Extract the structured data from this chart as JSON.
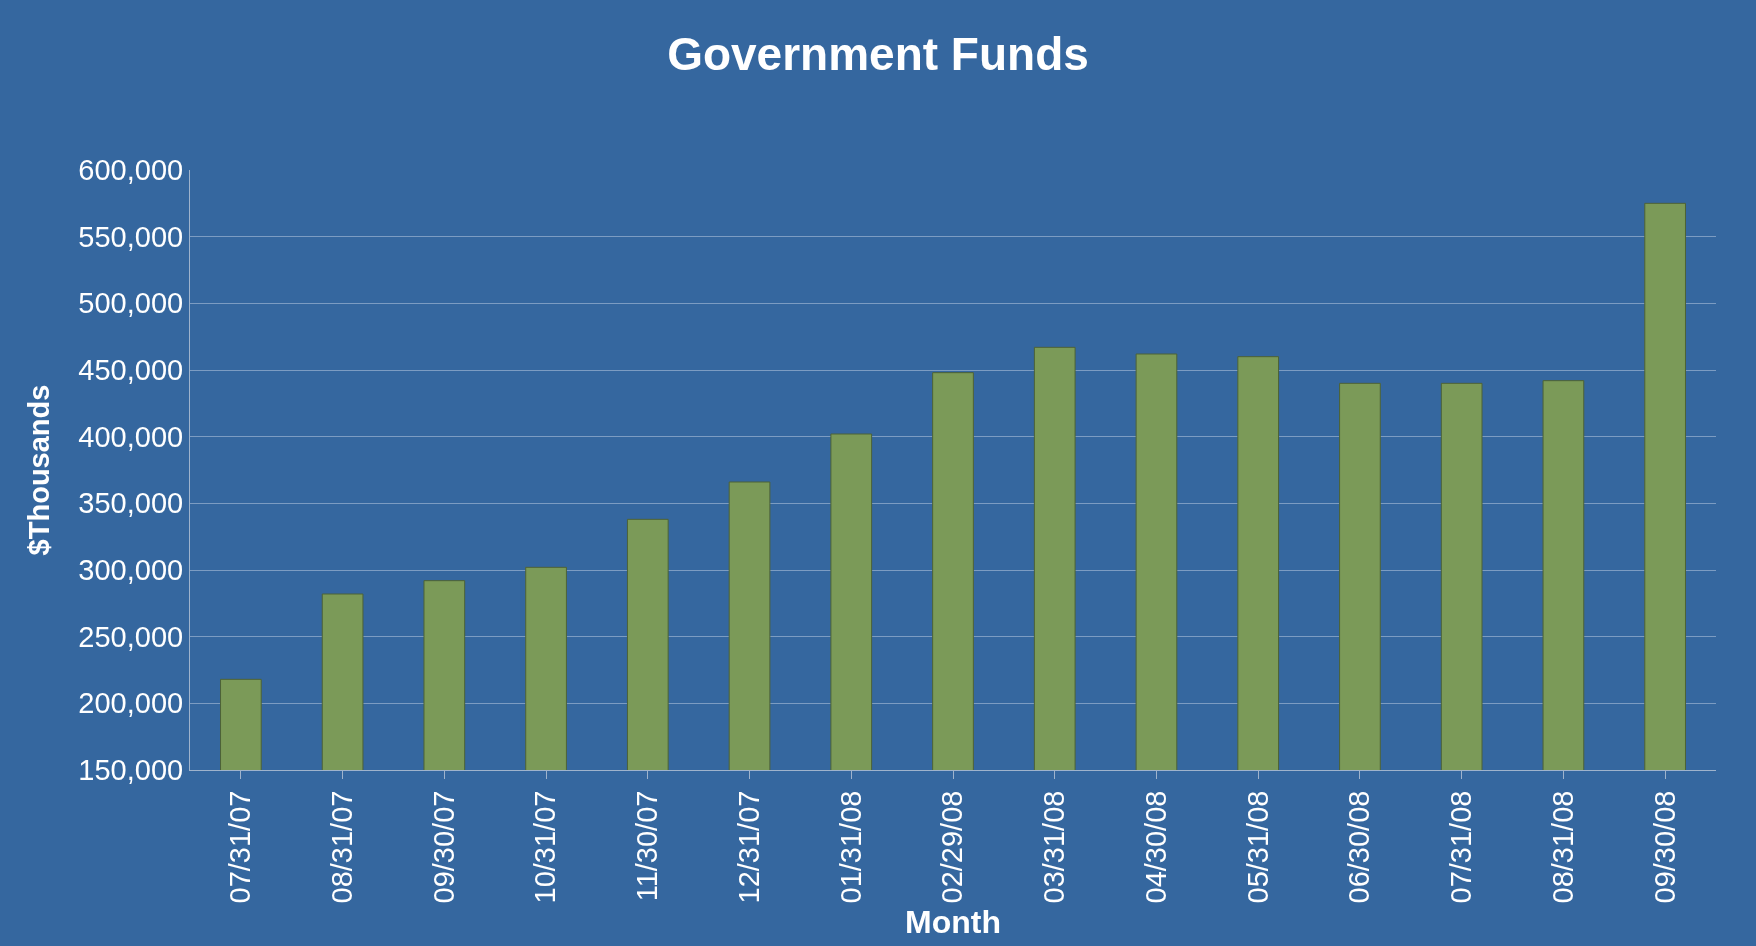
{
  "chart_data": {
    "type": "bar",
    "title": "Government Funds",
    "xlabel": "Month",
    "ylabel": "$Thousands",
    "categories": [
      "07/31/07",
      "08/31/07",
      "09/30/07",
      "10/31/07",
      "11/30/07",
      "12/31/07",
      "01/31/08",
      "02/29/08",
      "03/31/08",
      "04/30/08",
      "05/31/08",
      "06/30/08",
      "07/31/08",
      "08/31/08",
      "09/30/08"
    ],
    "values": [
      218000,
      282000,
      292000,
      302000,
      338000,
      366000,
      402000,
      448000,
      467000,
      462000,
      460000,
      440000,
      440000,
      442000,
      575000
    ],
    "color": "#7b9a58",
    "ylim": [
      150000,
      600000
    ],
    "yticks": [
      {
        "value": 150000,
        "label": "150,000"
      },
      {
        "value": 200000,
        "label": "200,000"
      },
      {
        "value": 250000,
        "label": "250,000"
      },
      {
        "value": 300000,
        "label": "300,000"
      },
      {
        "value": 350000,
        "label": "350,000"
      },
      {
        "value": 400000,
        "label": "400,000"
      },
      {
        "value": 450000,
        "label": "450,000"
      },
      {
        "value": 500000,
        "label": "500,000"
      },
      {
        "value": 550000,
        "label": "550,000"
      },
      {
        "value": 600000,
        "label": "600,000"
      }
    ],
    "grid": "y"
  }
}
